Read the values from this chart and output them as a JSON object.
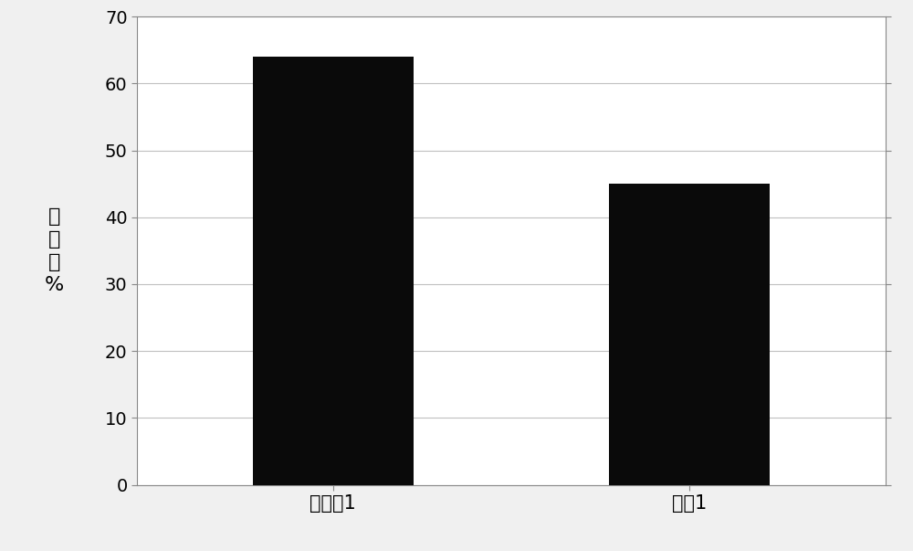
{
  "categories": [
    "实施例1",
    "对比1"
  ],
  "values": [
    64,
    45
  ],
  "bar_colors": [
    "#0a0a0a",
    "#0a0a0a"
  ],
  "bar_width": 0.18,
  "ylabel_chars": [
    "杀",
    "癃",
    "率",
    "%"
  ],
  "ylim": [
    0,
    70
  ],
  "yticks": [
    0,
    10,
    20,
    30,
    40,
    50,
    60,
    70
  ],
  "background_color": "#f0f0f0",
  "plot_bg_color": "#ffffff",
  "grid_color": "#c0c0c0",
  "spine_color": "#888888",
  "ylabel_fontsize": 16,
  "tick_fontsize": 14,
  "xlabel_fontsize": 15,
  "bar_positions": [
    0.3,
    0.7
  ]
}
